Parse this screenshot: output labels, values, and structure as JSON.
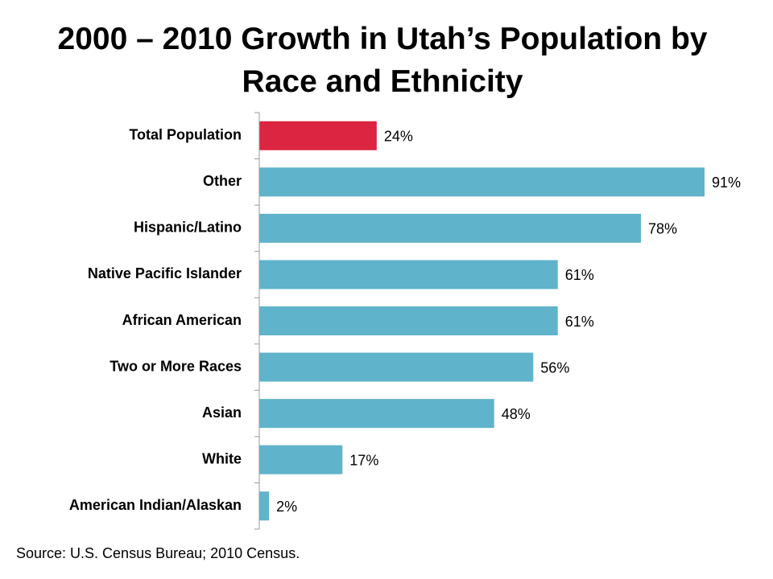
{
  "chart_data": {
    "type": "bar",
    "orientation": "horizontal",
    "title": "2000 – 2010 Growth in Utah’s Population by Race and Ethnicity",
    "categories": [
      "Total Population",
      "Other",
      "Hispanic/Latino",
      "Native Pacific Islander",
      "African American",
      "Two or More Races",
      "Asian",
      "White",
      "American Indian/Alaskan"
    ],
    "values": [
      24,
      91,
      78,
      61,
      61,
      56,
      48,
      17,
      2
    ],
    "value_labels": [
      "24%",
      "91%",
      "78%",
      "61%",
      "61%",
      "56%",
      "48%",
      "17%",
      "2%"
    ],
    "colors": [
      "#dc2540",
      "#5fb3cb",
      "#5fb3cb",
      "#5fb3cb",
      "#5fb3cb",
      "#5fb3cb",
      "#5fb3cb",
      "#5fb3cb",
      "#5fb3cb"
    ],
    "source": "Source: U.S. Census Bureau; 2010 Census."
  }
}
